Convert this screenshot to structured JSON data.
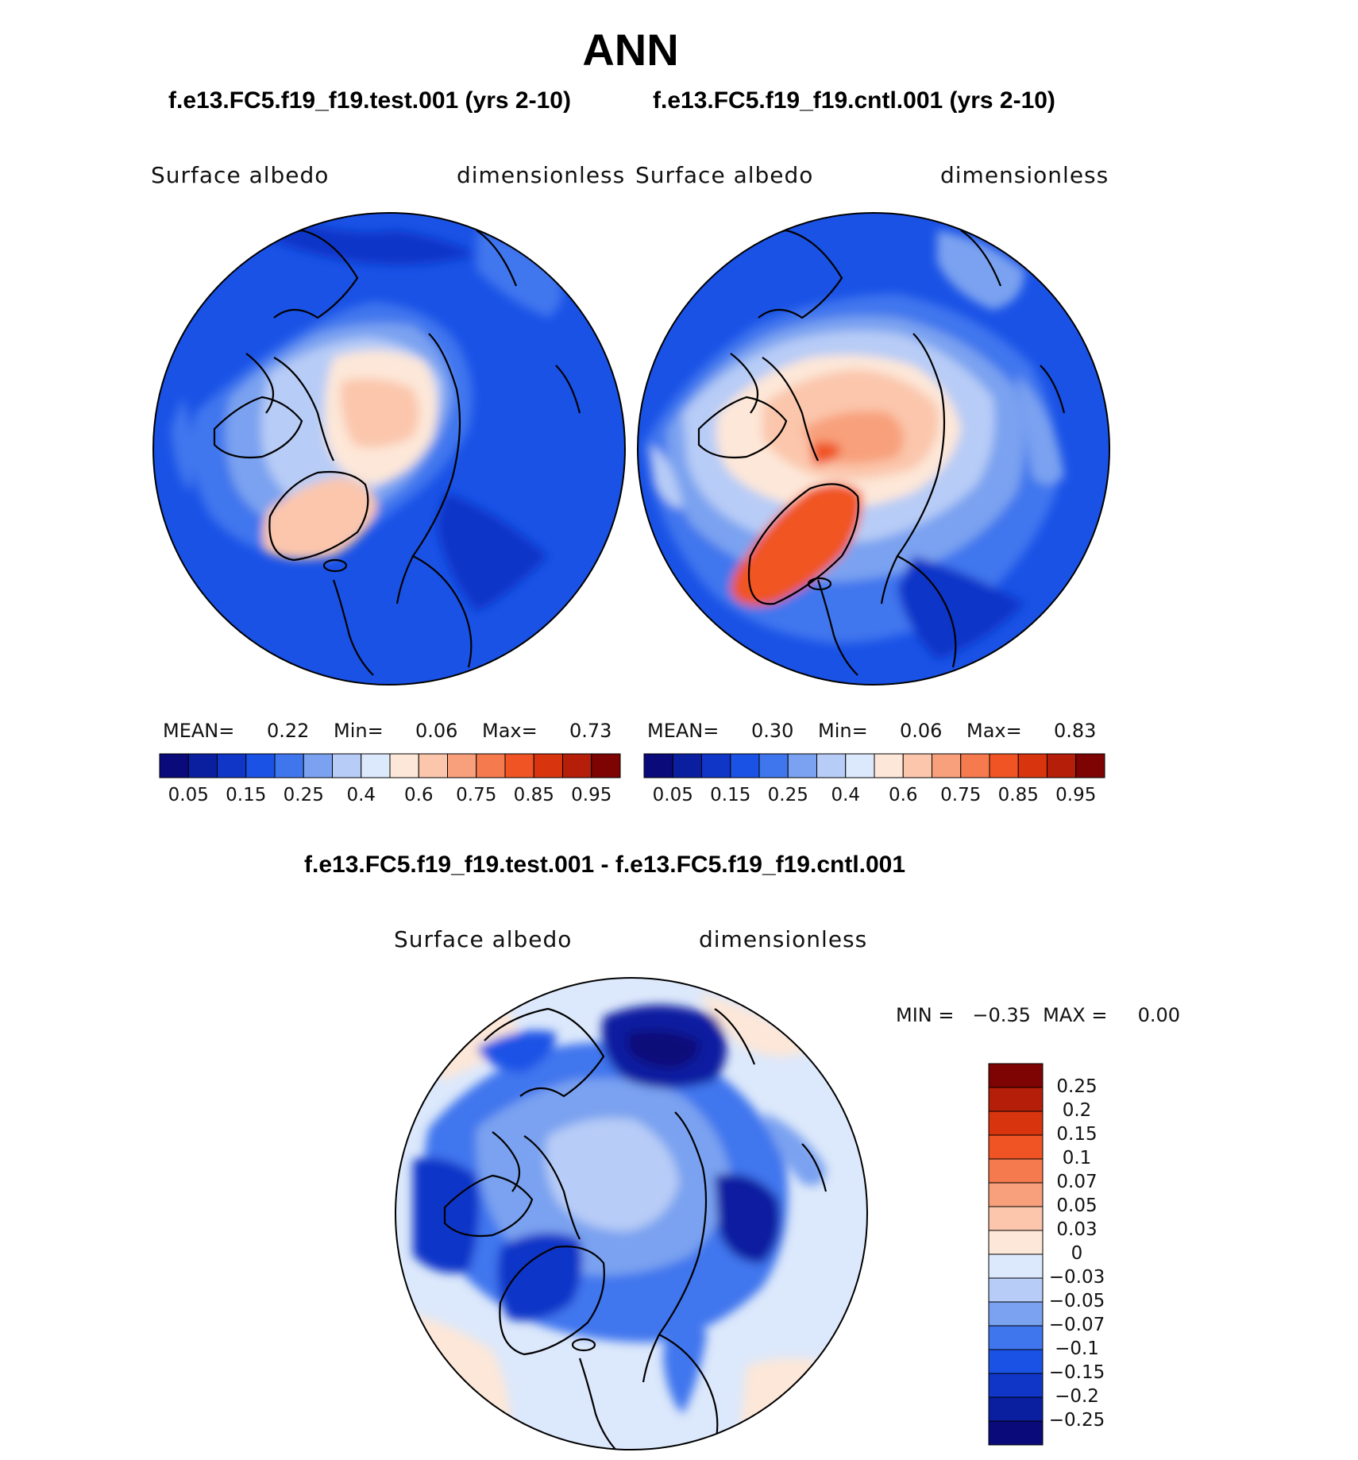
{
  "title": "ANN",
  "colors": {
    "scale_main": [
      "#0a0a7a",
      "#0a1fa0",
      "#1036c8",
      "#1a52e6",
      "#3f76ee",
      "#7aa2f0",
      "#b7ccf6",
      "#dce8fb",
      "#fde7d8",
      "#fbc6ac",
      "#f8a07c",
      "#f57a4e",
      "#f05424",
      "#d8340e",
      "#b51e08",
      "#7e0404"
    ],
    "scale_diff": [
      "#0a0a7a",
      "#0a1fa0",
      "#1036c8",
      "#1a52e6",
      "#3f76ee",
      "#7aa2f0",
      "#b7ccf6",
      "#dce8fb",
      "#fde7d8",
      "#fbc6ac",
      "#f8a07c",
      "#f57a4e",
      "#f05424",
      "#d8340e",
      "#b51e08",
      "#7e0404"
    ],
    "land_outline": "#000000"
  },
  "panels": [
    {
      "case_title": "f.e13.FC5.f19_f19.test.001 (yrs 2-10)",
      "variable": "Surface albedo",
      "units": "dimensionless",
      "mean_label": "MEAN=",
      "mean": "0.22",
      "min_label": "Min=",
      "min": "0.06",
      "max_label": "Max=",
      "max": "0.73"
    },
    {
      "case_title": "f.e13.FC5.f19_f19.cntl.001 (yrs 2-10)",
      "variable": "Surface albedo",
      "units": "dimensionless",
      "mean_label": "MEAN=",
      "mean": "0.30",
      "min_label": "Min=",
      "min": "0.06",
      "max_label": "Max=",
      "max": "0.83"
    }
  ],
  "diff": {
    "case_title": "f.e13.FC5.f19_f19.test.001 - f.e13.FC5.f19_f19.cntl.001",
    "variable": "Surface albedo",
    "units": "dimensionless",
    "stats": "MIN =   −0.35  MAX =     0.00"
  },
  "chart_data": [
    {
      "type": "heatmap",
      "projection": "north-polar-stereographic",
      "title": "f.e13.FC5.f19_f19.test.001 (yrs 2-10)",
      "variable": "Surface albedo",
      "units": "dimensionless",
      "mean": 0.22,
      "min": 0.06,
      "max": 0.73,
      "colorbar_ticks": [
        "0.05",
        "0.15",
        "0.25",
        "0.4",
        "0.6",
        "0.75",
        "0.85",
        "0.95"
      ],
      "colorbar_levels": [
        0.05,
        0.1,
        0.15,
        0.2,
        0.25,
        0.3,
        0.4,
        0.5,
        0.6,
        0.7,
        0.75,
        0.8,
        0.85,
        0.9,
        0.95
      ]
    },
    {
      "type": "heatmap",
      "projection": "north-polar-stereographic",
      "title": "f.e13.FC5.f19_f19.cntl.001 (yrs 2-10)",
      "variable": "Surface albedo",
      "units": "dimensionless",
      "mean": 0.3,
      "min": 0.06,
      "max": 0.83,
      "colorbar_ticks": [
        "0.05",
        "0.15",
        "0.25",
        "0.4",
        "0.6",
        "0.75",
        "0.85",
        "0.95"
      ],
      "colorbar_levels": [
        0.05,
        0.1,
        0.15,
        0.2,
        0.25,
        0.3,
        0.4,
        0.5,
        0.6,
        0.7,
        0.75,
        0.8,
        0.85,
        0.9,
        0.95
      ]
    },
    {
      "type": "heatmap",
      "projection": "north-polar-stereographic",
      "title": "f.e13.FC5.f19_f19.test.001 - f.e13.FC5.f19_f19.cntl.001",
      "variable": "Surface albedo",
      "units": "dimensionless",
      "min": -0.35,
      "max": 0.0,
      "colorbar_ticks": [
        "0.25",
        "0.2",
        "0.15",
        "0.1",
        "0.07",
        "0.05",
        "0.03",
        "0",
        "−0.03",
        "−0.05",
        "−0.07",
        "−0.1",
        "−0.15",
        "−0.2",
        "−0.25"
      ]
    }
  ]
}
